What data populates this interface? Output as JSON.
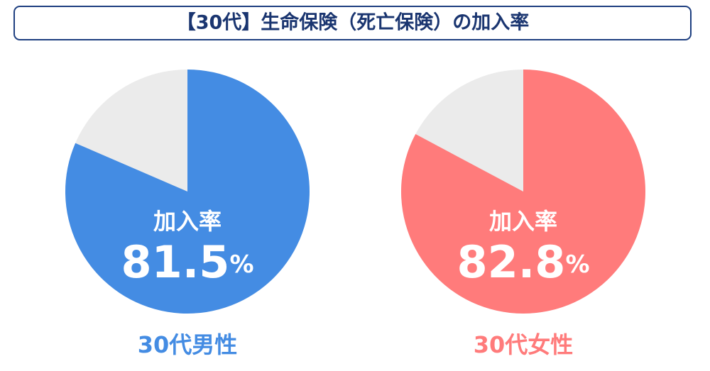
{
  "title": "【30代】生命保険（死亡保険）の加入率",
  "chart_data": [
    {
      "type": "pie",
      "title": "30代男性",
      "center_label": "加入率",
      "values": [
        81.5
      ],
      "unit": "%",
      "color": "#448ce3",
      "rest_color": "#ebebeb"
    },
    {
      "type": "pie",
      "title": "30代女性",
      "center_label": "加入率",
      "values": [
        82.8
      ],
      "unit": "%",
      "color": "#ff7b7b",
      "rest_color": "#ebebeb"
    }
  ]
}
